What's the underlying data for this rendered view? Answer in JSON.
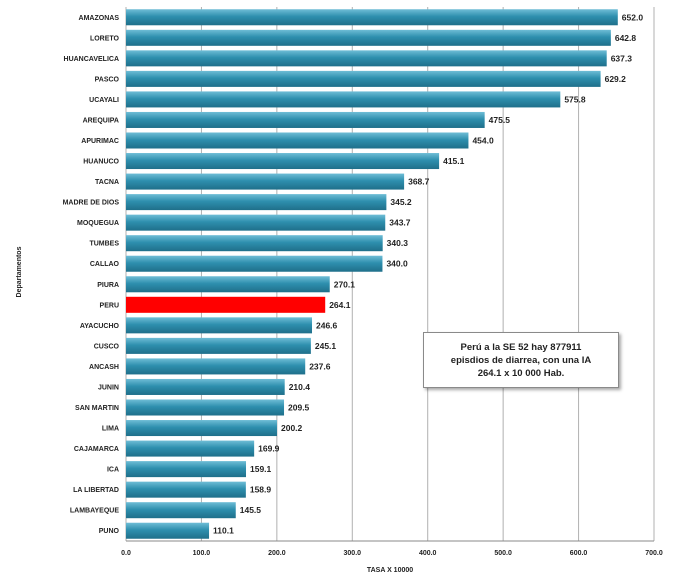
{
  "chart_data": {
    "type": "bar",
    "orientation": "horizontal",
    "categories": [
      "AMAZONAS",
      "LORETO",
      "HUANCAVELICA",
      "PASCO",
      "UCAYALI",
      "AREQUIPA",
      "APURIMAC",
      "HUANUCO",
      "TACNA",
      "MADRE DE DIOS",
      "MOQUEGUA",
      "TUMBES",
      "CALLAO",
      "PIURA",
      "PERU",
      "AYACUCHO",
      "CUSCO",
      "ANCASH",
      "JUNIN",
      "SAN MARTIN",
      "LIMA",
      "CAJAMARCA",
      "ICA",
      "LA LIBERTAD",
      "LAMBAYEQUE",
      "PUNO"
    ],
    "values": [
      652.0,
      642.8,
      637.3,
      629.2,
      575.8,
      475.5,
      454.0,
      415.1,
      368.7,
      345.2,
      343.7,
      340.3,
      340.0,
      270.1,
      264.1,
      246.6,
      245.1,
      237.6,
      210.4,
      209.5,
      200.2,
      169.9,
      159.1,
      158.9,
      145.5,
      110.1
    ],
    "value_labels": [
      "652.0",
      "642.8",
      "637.3",
      "629.2",
      "575.8",
      "475.5",
      "454.0",
      "415.1",
      "368.7",
      "345.2",
      "343.7",
      "340.3",
      "340.0",
      "270.1",
      "264.1",
      "246.6",
      "245.1",
      "237.6",
      "210.4",
      "209.5",
      "200.2",
      "169.9",
      "159.1",
      "158.9",
      "145.5",
      "110.1"
    ],
    "highlight": "PERU",
    "xlim": [
      0,
      700
    ],
    "xticks": [
      0,
      100,
      200,
      300,
      400,
      500,
      600,
      700
    ],
    "xtick_labels": [
      "0.0",
      "100.0",
      "200.0",
      "300.0",
      "400.0",
      "500.0",
      "600.0",
      "700.0"
    ],
    "xlabel": "TASA X 10000",
    "ylabel": "Departamentos",
    "grid": "vertical",
    "colors": {
      "bar": "#2e8fae",
      "bar_top": "#6fbdd6",
      "highlight": "#ff0000",
      "grid": "#b0b0b0"
    },
    "annotation": {
      "lines": [
        "Perú a la SE 52 hay 877911",
        "episdios de diarrea, con una IA",
        "264.1  x 10 000 Hab."
      ]
    }
  }
}
